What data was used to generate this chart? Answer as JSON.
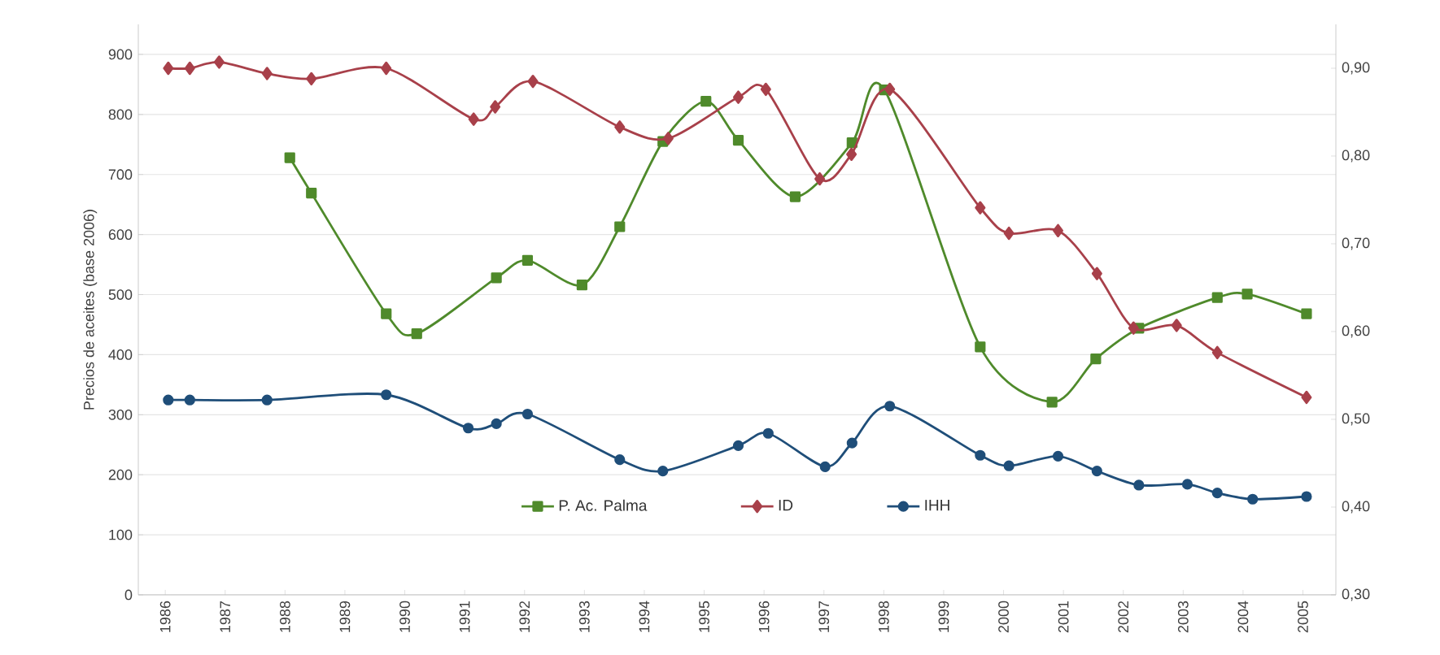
{
  "chart_data": {
    "type": "line",
    "ylabel": "Precios de aceites (base 2006)",
    "xlim": [
      1985.55,
      2005.55
    ],
    "xticks": [
      1986,
      1987,
      1988,
      1989,
      1990,
      1991,
      1992,
      1993,
      1994,
      1995,
      1996,
      1997,
      1998,
      1999,
      2000,
      2001,
      2002,
      2003,
      2004,
      2005
    ],
    "ylim": [
      0,
      950
    ],
    "yticks": [
      0,
      100,
      200,
      300,
      400,
      500,
      600,
      700,
      800,
      900
    ],
    "y2lim": [
      0.3,
      0.95
    ],
    "y2ticks": [
      {
        "value": 0.3,
        "label": "0,30"
      },
      {
        "value": 0.4,
        "label": "0,40"
      },
      {
        "value": 0.5,
        "label": "0,50"
      },
      {
        "value": 0.6,
        "label": "0,60"
      },
      {
        "value": 0.7,
        "label": "0,70"
      },
      {
        "value": 0.8,
        "label": "0,80"
      },
      {
        "value": 0.9,
        "label": "0,90"
      }
    ],
    "grid": "y",
    "legend": "bottom",
    "line_style": "solid",
    "series": [
      {
        "name": "P. Ac. Palma",
        "color": "#4f8a2b",
        "marker": "square",
        "x": [
          1988.08,
          1988.44,
          1989.69,
          1990.2,
          1991.53,
          1992.05,
          1992.96,
          1993.59,
          1994.31,
          1995.03,
          1995.57,
          1996.52,
          1997.47,
          1998.01,
          1999.61,
          2000.81,
          2001.54,
          2002.26,
          2003.57,
          2004.07,
          2005.06
        ],
        "values": [
          728,
          669,
          468,
          435,
          528,
          557,
          516,
          613,
          755,
          822,
          757,
          663,
          753,
          841,
          413,
          321,
          393,
          444,
          495,
          501,
          468
        ]
      },
      {
        "name": "ID",
        "color": "#a8404a",
        "marker": "diamond",
        "axis": "y2",
        "x": [
          1986.05,
          1986.41,
          1986.9,
          1987.7,
          1988.44,
          1989.69,
          1991.15,
          1991.51,
          1992.14,
          1993.59,
          1994.4,
          1995.57,
          1996.03,
          1996.93,
          1997.46,
          1998.1,
          1999.61,
          2000.09,
          2000.91,
          2001.56,
          2002.17,
          2002.89,
          2003.57,
          2005.06
        ],
        "values": [
          0.9,
          0.9,
          0.907,
          0.894,
          0.888,
          0.9,
          0.842,
          0.856,
          0.885,
          0.833,
          0.82,
          0.867,
          0.876,
          0.774,
          0.802,
          0.876,
          0.741,
          0.712,
          0.715,
          0.666,
          0.604,
          0.607,
          0.576,
          0.525
        ]
      },
      {
        "name": "IHH",
        "color": "#1f4e79",
        "marker": "circle",
        "axis": "y2",
        "x": [
          1986.05,
          1986.41,
          1987.7,
          1989.69,
          1991.06,
          1991.53,
          1992.05,
          1993.59,
          1994.31,
          1995.57,
          1996.07,
          1997.02,
          1997.47,
          1998.1,
          1999.61,
          2000.09,
          2000.91,
          2001.56,
          2002.26,
          2003.07,
          2003.57,
          2004.16,
          2005.06
        ],
        "values": [
          0.522,
          0.522,
          0.522,
          0.528,
          0.49,
          0.495,
          0.506,
          0.454,
          0.441,
          0.47,
          0.484,
          0.446,
          0.473,
          0.515,
          0.459,
          0.447,
          0.458,
          0.441,
          0.425,
          0.426,
          0.416,
          0.409,
          0.412
        ]
      }
    ]
  }
}
